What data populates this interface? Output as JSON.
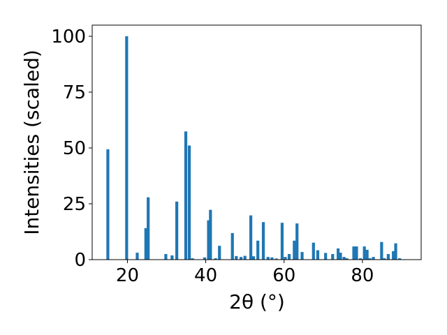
{
  "chart_data": {
    "type": "bar",
    "xlabel": "2θ (°)",
    "ylabel": "Intensities (scaled)",
    "xlim": [
      11,
      95
    ],
    "ylim": [
      0,
      105
    ],
    "grid": false,
    "bar_color": "#1f77b4",
    "x_ticks": [
      20,
      40,
      60,
      80
    ],
    "y_ticks": [
      0,
      25,
      50,
      75,
      100
    ],
    "x": [
      15.0,
      19.8,
      22.5,
      24.7,
      25.3,
      29.8,
      31.4,
      32.6,
      34.9,
      35.8,
      36.6,
      39.7,
      40.7,
      41.2,
      42.5,
      43.5,
      46.8,
      47.8,
      49.0,
      50.0,
      51.5,
      52.2,
      53.3,
      54.7,
      55.9,
      56.9,
      58.0,
      59.5,
      60.3,
      61.3,
      62.6,
      63.3,
      64.6,
      67.5,
      68.6,
      70.6,
      72.4,
      73.8,
      74.4,
      75.3,
      76.0,
      77.8,
      78.5,
      79.5,
      80.5,
      81.2,
      81.9,
      82.8,
      84.9,
      85.6,
      86.6,
      87.9,
      88.5,
      89.5
    ],
    "values": [
      49.4,
      100.0,
      3.1,
      14.1,
      27.9,
      2.5,
      1.9,
      26.0,
      57.4,
      51.1,
      0.6,
      1.0,
      17.6,
      22.3,
      0.6,
      6.2,
      11.9,
      1.6,
      1.2,
      1.7,
      19.8,
      1.5,
      8.5,
      16.8,
      1.2,
      1.0,
      0.5,
      16.5,
      1.2,
      2.5,
      8.5,
      16.2,
      3.4,
      7.6,
      4.2,
      3.0,
      2.5,
      5.0,
      3.1,
      1.2,
      0.6,
      5.9,
      5.9,
      0.6,
      5.9,
      4.4,
      0.6,
      1.2,
      7.9,
      0.6,
      2.5,
      3.8,
      7.3,
      0.6
    ]
  }
}
